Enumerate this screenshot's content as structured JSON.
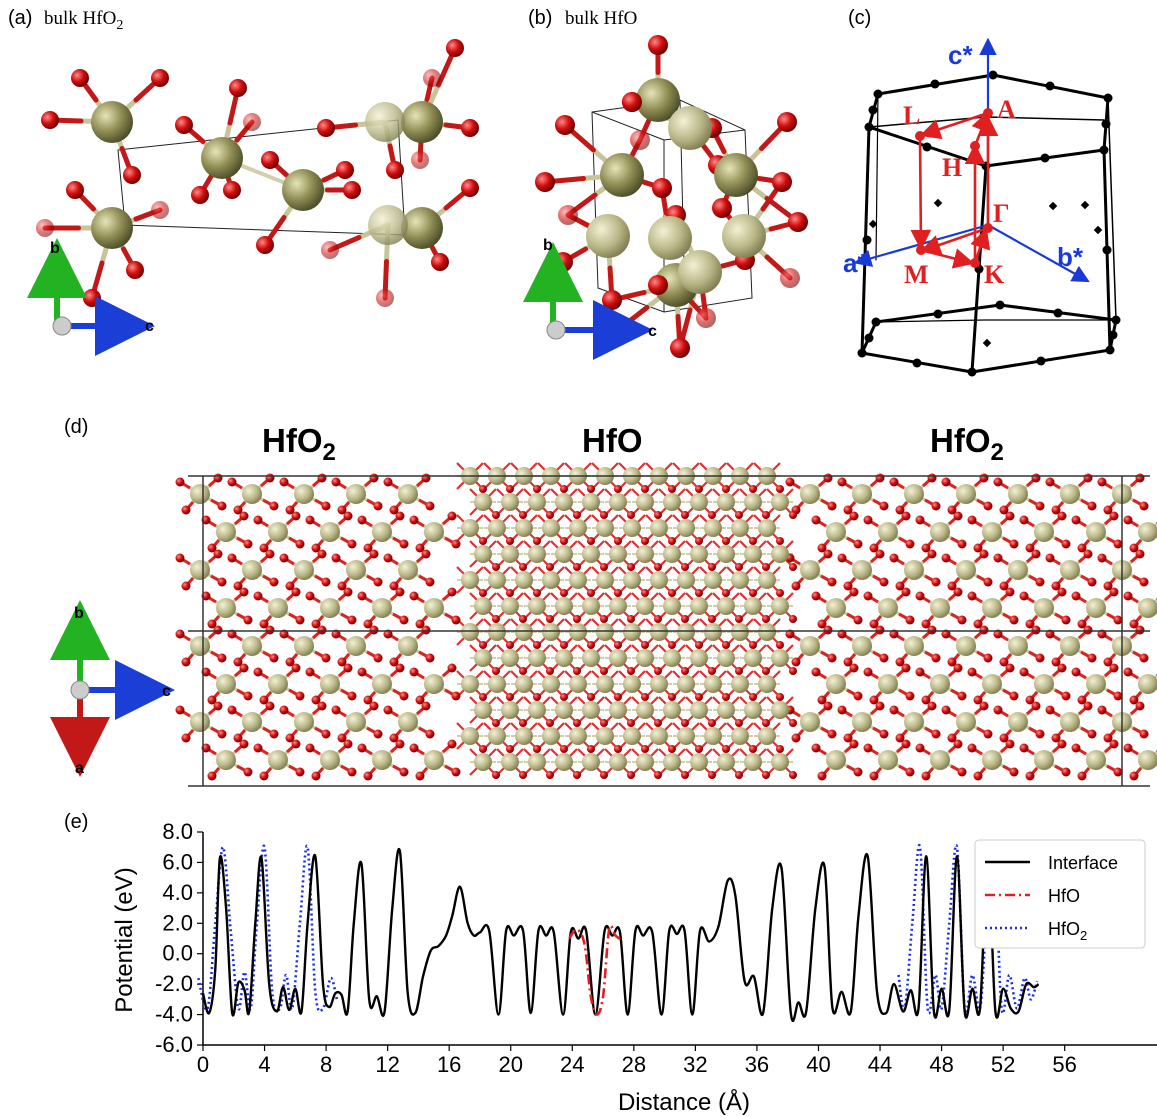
{
  "panels": {
    "a": {
      "tag": "(a)",
      "title": "bulk HfO",
      "sub": "2",
      "axes": {
        "up": "b",
        "right": "c"
      }
    },
    "b": {
      "tag": "(b)",
      "title": "bulk HfO",
      "axes": {
        "up": "b",
        "right": "c"
      }
    },
    "c": {
      "tag": "(c)",
      "axes": {
        "cstar": "c*",
        "astar": "a*",
        "bstar": "b*"
      },
      "points": [
        "L",
        "A",
        "H",
        "Γ",
        "M",
        "K"
      ]
    },
    "d": {
      "tag": "(d)",
      "regions": [
        {
          "text": "HfO",
          "sub": "2"
        },
        {
          "text": "HfO",
          "sub": ""
        },
        {
          "text": "HfO",
          "sub": "2"
        }
      ],
      "axes": {
        "up": "b",
        "down": "a",
        "right": "c"
      }
    },
    "e": {
      "tag": "(e)"
    }
  },
  "colors": {
    "hf": "#a3a36a",
    "o": "#d11a1a",
    "bond_hf": "#c7c39a",
    "bond_o": "#c21818",
    "axis_b": "#22b222",
    "axis_c": "#1b3fd6",
    "axis_a": "#c21818",
    "bz_path": "#e02020",
    "recip": "#1a3ad8"
  },
  "chart_data": {
    "type": "line",
    "xlabel": "Distance (Å)",
    "ylabel": "Potential (eV)",
    "xlim": [
      0,
      62
    ],
    "ylim": [
      -6.0,
      8.0
    ],
    "xticks": [
      0,
      4,
      8,
      12,
      16,
      20,
      24,
      28,
      32,
      36,
      40,
      44,
      48,
      52,
      56
    ],
    "yticks": [
      -6.0,
      -4.0,
      -2.0,
      0.0,
      2.0,
      4.0,
      6.0,
      8.0
    ],
    "xtick_labels": [
      "0",
      "4",
      "8",
      "12",
      "16",
      "20",
      "24",
      "28",
      "32",
      "36",
      "40",
      "44",
      "48",
      "52",
      "56"
    ],
    "ytick_labels": [
      "-6.0",
      "-4.0",
      "-2.0",
      "0.0",
      "2.0",
      "4.0",
      "6.0",
      "8.0"
    ],
    "legend_position": "top-right",
    "grid": false,
    "series": [
      {
        "name": "Interface",
        "style": "solid",
        "color": "#000000",
        "x": [
          0.0,
          0.4,
          0.8,
          1.1,
          1.5,
          1.9,
          2.3,
          2.7,
          3.0,
          3.4,
          3.8,
          4.3,
          4.8,
          5.2,
          5.6,
          6.0,
          6.4,
          6.8,
          7.3,
          7.8,
          8.2,
          8.6,
          9.0,
          9.4,
          9.8,
          10.3,
          10.8,
          11.3,
          11.8,
          12.3,
          12.8,
          13.3,
          13.8,
          14.3,
          14.8,
          15.3,
          15.8,
          16.2,
          16.7,
          17.2,
          17.6,
          18.0,
          18.6,
          19.2,
          19.7,
          20.2,
          20.8,
          21.3,
          21.8,
          22.3,
          22.8,
          23.4,
          23.9,
          24.4,
          24.9,
          25.5,
          26.1,
          26.6,
          27.1,
          27.6,
          28.1,
          28.6,
          29.2,
          29.8,
          30.3,
          30.8,
          31.3,
          31.8,
          32.3,
          32.9,
          33.5,
          34.1,
          34.6,
          35.2,
          35.8,
          36.4,
          37.0,
          37.6,
          38.2,
          38.7,
          39.2,
          39.8,
          40.4,
          40.9,
          41.5,
          42.1,
          42.6,
          43.2,
          43.8,
          44.4,
          44.9,
          45.5,
          46.0,
          46.5,
          47.0,
          47.5,
          48.0,
          48.5,
          49.0,
          49.5,
          50.0,
          50.5,
          51.0,
          51.5,
          52.0,
          52.5,
          53.0,
          53.5,
          54.0,
          54.3
        ],
        "y": [
          -2.6,
          -3.9,
          -1.0,
          6.3,
          3.0,
          -3.9,
          -1.9,
          -2.4,
          -3.8,
          2.0,
          6.3,
          -2.0,
          -3.8,
          -2.2,
          -3.7,
          -2.3,
          -3.8,
          2.0,
          6.4,
          -2.0,
          -3.5,
          -2.6,
          -2.7,
          -3.8,
          2.0,
          5.9,
          -3.0,
          -2.8,
          -3.8,
          3.0,
          6.7,
          -2.5,
          -3.9,
          -1.5,
          0.2,
          0.5,
          1.2,
          2.5,
          4.4,
          2.0,
          1.2,
          1.4,
          1.5,
          -4.0,
          1.5,
          1.2,
          1.5,
          -3.9,
          1.5,
          1.2,
          1.4,
          -4.0,
          1.4,
          1.0,
          1.5,
          -4.0,
          1.5,
          1.2,
          1.4,
          -4.0,
          1.5,
          1.2,
          1.4,
          -4.0,
          1.5,
          1.3,
          1.5,
          -4.0,
          1.5,
          0.8,
          1.8,
          4.8,
          3.8,
          -1.8,
          -1.5,
          -3.9,
          3.0,
          5.6,
          -3.9,
          -3.2,
          -3.8,
          3.0,
          5.7,
          -3.5,
          -2.5,
          -3.8,
          2.5,
          6.4,
          -2.5,
          -3.9,
          -2.0,
          -3.8,
          -2.4,
          -3.6,
          6.4,
          -3.8,
          -2.3,
          -3.7,
          6.4,
          -3.8,
          -2.3,
          -3.6,
          6.4,
          -3.8,
          -2.3,
          -3.6,
          -3.8,
          -2.0,
          -2.2,
          -2.0
        ]
      },
      {
        "name": "HfO",
        "style": "dashdot",
        "color": "#e02020",
        "x": [
          23.8,
          24.3,
          24.8,
          25.2,
          25.6,
          26.0,
          26.4,
          26.8,
          27.2
        ],
        "y": [
          1.0,
          1.6,
          0.6,
          -2.8,
          -4.0,
          -2.8,
          1.6,
          1.2,
          0.9
        ]
      },
      {
        "name": "HfO2",
        "label_main": "HfO",
        "label_sub": "2",
        "style": "dotted",
        "color": "#1a2ee0",
        "x": [
          -0.3,
          0.3,
          0.8,
          1.3,
          1.8,
          2.3,
          2.7,
          3.1,
          3.5,
          4.0,
          4.5,
          5.0,
          5.4,
          5.8,
          6.3,
          6.8,
          7.3,
          7.8,
          8.3,
          8.7,
          45.2,
          45.6,
          46.1,
          46.6,
          47.1,
          47.6,
          48.0,
          48.5,
          49.0,
          49.5,
          50.0,
          50.5,
          50.9,
          51.4,
          51.9,
          52.4,
          52.9,
          53.4,
          53.8,
          54.2
        ],
        "y": [
          -1.6,
          -3.6,
          2.0,
          7.0,
          1.5,
          -3.6,
          -1.2,
          -3.6,
          2.0,
          7.0,
          -2.5,
          -3.6,
          -1.4,
          -3.6,
          2.0,
          7.0,
          -2.5,
          -3.6,
          -1.6,
          -3.0,
          -1.4,
          -3.6,
          2.0,
          7.0,
          -3.6,
          -1.4,
          -3.6,
          2.0,
          7.0,
          -3.6,
          -1.4,
          -3.6,
          2.0,
          7.0,
          -3.6,
          -1.4,
          -3.6,
          -1.6,
          -3.0,
          -1.8
        ]
      }
    ]
  }
}
